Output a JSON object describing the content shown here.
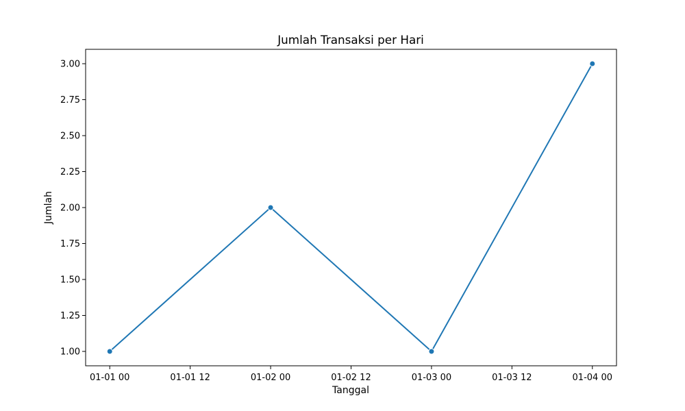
{
  "chart_data": {
    "type": "line",
    "title": "Jumlah Transaksi per Hari",
    "xlabel": "Tanggal",
    "ylabel": "Jumlah",
    "x": [
      "2023-01-01",
      "2023-01-02",
      "2023-01-03",
      "2023-01-04"
    ],
    "series": [
      {
        "values": [
          1,
          2,
          1,
          3
        ],
        "color": "#1f77b4"
      }
    ],
    "xticks": [
      {
        "value": 0.0,
        "label": "01-01 00"
      },
      {
        "value": 0.5,
        "label": "01-01 12"
      },
      {
        "value": 1.0,
        "label": "01-02 00"
      },
      {
        "value": 1.5,
        "label": "01-02 12"
      },
      {
        "value": 2.0,
        "label": "01-03 00"
      },
      {
        "value": 2.5,
        "label": "01-03 12"
      },
      {
        "value": 3.0,
        "label": "01-04 00"
      }
    ],
    "yticks": [
      {
        "value": 1.0,
        "label": "1.00"
      },
      {
        "value": 1.25,
        "label": "1.25"
      },
      {
        "value": 1.5,
        "label": "1.50"
      },
      {
        "value": 1.75,
        "label": "1.75"
      },
      {
        "value": 2.0,
        "label": "2.00"
      },
      {
        "value": 2.25,
        "label": "2.25"
      },
      {
        "value": 2.5,
        "label": "2.50"
      },
      {
        "value": 2.75,
        "label": "2.75"
      },
      {
        "value": 3.0,
        "label": "3.00"
      }
    ],
    "xlim": [
      -0.15,
      3.15
    ],
    "ylim": [
      0.9,
      3.1
    ],
    "grid": false,
    "legend": "none"
  }
}
